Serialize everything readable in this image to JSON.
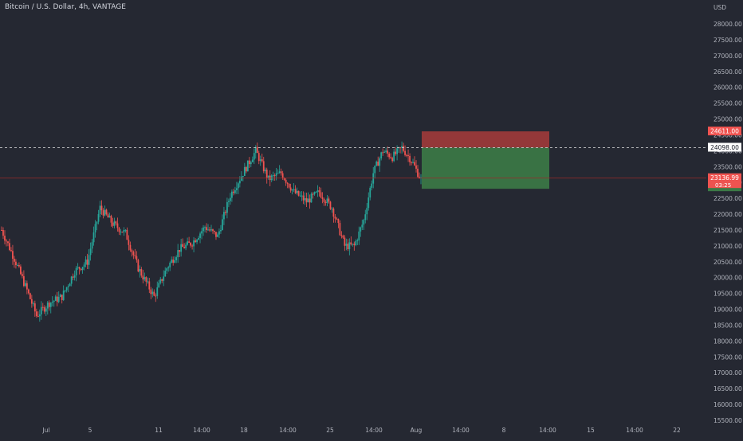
{
  "header": {
    "symbol_title": "Bitcoin / U.S. Dollar, 4h, VANTAGE"
  },
  "colors": {
    "background": "#252832",
    "up": "#26a69a",
    "down": "#ef5350",
    "stop_zone": "#a13a3a",
    "target_zone": "#3c7a46",
    "axis_text": "#b2b5be",
    "price_line": "#c8c9cc",
    "current_price_line": "#9b2b2b"
  },
  "chart_data": {
    "type": "candlestick",
    "timeframe": "4h",
    "y_axis": {
      "unit_label": "USD",
      "range": [
        15300,
        28700
      ],
      "tick_labels": [
        "28000.00",
        "27500.00",
        "27000.00",
        "26500.00",
        "26000.00",
        "25500.00",
        "25000.00",
        "24500.00",
        "24000.00",
        "23500.00",
        "23000.00",
        "22500.00",
        "22000.00",
        "21500.00",
        "21000.00",
        "20500.00",
        "20000.00",
        "19500.00",
        "19000.00",
        "18500.00",
        "18000.00",
        "17500.00",
        "17000.00",
        "16500.00",
        "16000.00",
        "15500.00"
      ]
    },
    "x_axis": {
      "tick_labels": [
        "Jul",
        "5",
        "11",
        "14:00",
        "18",
        "14:00",
        "25",
        "14:00",
        "Aug",
        "14:00",
        "8",
        "14:00",
        "15",
        "14:00",
        "22"
      ]
    },
    "anchor_points": [
      {
        "t": 0,
        "price": 21500
      },
      {
        "t": 8,
        "price": 20600
      },
      {
        "t": 16,
        "price": 19600
      },
      {
        "t": 22,
        "price": 18800
      },
      {
        "t": 30,
        "price": 19200
      },
      {
        "t": 38,
        "price": 19400
      },
      {
        "t": 46,
        "price": 20200
      },
      {
        "t": 54,
        "price": 20500
      },
      {
        "t": 62,
        "price": 22200
      },
      {
        "t": 70,
        "price": 21700
      },
      {
        "t": 78,
        "price": 21400
      },
      {
        "t": 86,
        "price": 20300
      },
      {
        "t": 96,
        "price": 19400
      },
      {
        "t": 104,
        "price": 20300
      },
      {
        "t": 112,
        "price": 20900
      },
      {
        "t": 120,
        "price": 21100
      },
      {
        "t": 128,
        "price": 21600
      },
      {
        "t": 136,
        "price": 21300
      },
      {
        "t": 144,
        "price": 22600
      },
      {
        "t": 152,
        "price": 23300
      },
      {
        "t": 160,
        "price": 24000
      },
      {
        "t": 168,
        "price": 23100
      },
      {
        "t": 176,
        "price": 23300
      },
      {
        "t": 184,
        "price": 22700
      },
      {
        "t": 192,
        "price": 22400
      },
      {
        "t": 200,
        "price": 22700
      },
      {
        "t": 208,
        "price": 22200
      },
      {
        "t": 216,
        "price": 21000
      },
      {
        "t": 222,
        "price": 21000
      },
      {
        "t": 228,
        "price": 21800
      },
      {
        "t": 234,
        "price": 23300
      },
      {
        "t": 240,
        "price": 24000
      },
      {
        "t": 246,
        "price": 23800
      },
      {
        "t": 252,
        "price": 24100
      },
      {
        "t": 258,
        "price": 23700
      },
      {
        "t": 264,
        "price": 23100
      }
    ],
    "price_levels": {
      "stop_loss": {
        "label": "24611.00",
        "value": 24611
      },
      "entry_price_line": {
        "label": "24098.00",
        "value": 24098
      },
      "current_price": {
        "label": "23136.99",
        "value": 23136.99,
        "countdown": "03:25"
      },
      "take_profit": {
        "value": 22800
      }
    },
    "position_tool": {
      "type": "short",
      "entry": 24098,
      "stop": 24611,
      "target": 22800
    }
  }
}
